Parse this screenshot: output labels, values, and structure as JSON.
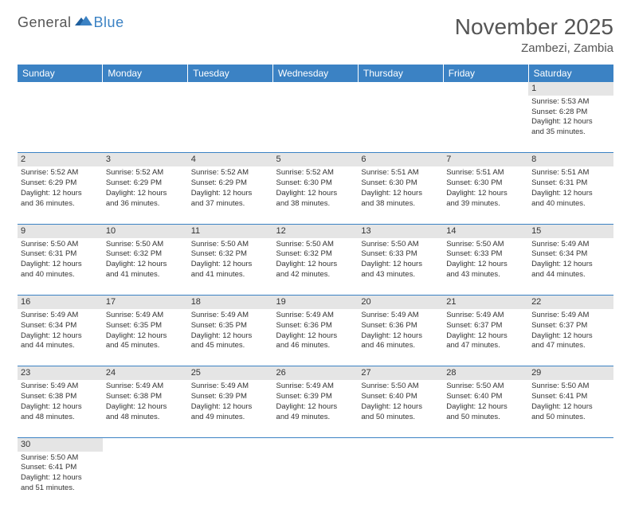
{
  "logo": {
    "part1": "General",
    "part2": "Blue"
  },
  "title": "November 2025",
  "location": "Zambezi, Zambia",
  "colors": {
    "header_bg": "#3b82c4",
    "header_text": "#ffffff",
    "daynum_bg": "#e5e5e5",
    "cell_border": "#3b82c4",
    "body_text": "#333333",
    "title_text": "#555555"
  },
  "day_headers": [
    "Sunday",
    "Monday",
    "Tuesday",
    "Wednesday",
    "Thursday",
    "Friday",
    "Saturday"
  ],
  "weeks": [
    {
      "nums": [
        "",
        "",
        "",
        "",
        "",
        "",
        "1"
      ],
      "cells": [
        null,
        null,
        null,
        null,
        null,
        null,
        {
          "sunrise": "5:53 AM",
          "sunset": "6:28 PM",
          "dl1": "12 hours",
          "dl2": "and 35 minutes."
        }
      ]
    },
    {
      "nums": [
        "2",
        "3",
        "4",
        "5",
        "6",
        "7",
        "8"
      ],
      "cells": [
        {
          "sunrise": "5:52 AM",
          "sunset": "6:29 PM",
          "dl1": "12 hours",
          "dl2": "and 36 minutes."
        },
        {
          "sunrise": "5:52 AM",
          "sunset": "6:29 PM",
          "dl1": "12 hours",
          "dl2": "and 36 minutes."
        },
        {
          "sunrise": "5:52 AM",
          "sunset": "6:29 PM",
          "dl1": "12 hours",
          "dl2": "and 37 minutes."
        },
        {
          "sunrise": "5:52 AM",
          "sunset": "6:30 PM",
          "dl1": "12 hours",
          "dl2": "and 38 minutes."
        },
        {
          "sunrise": "5:51 AM",
          "sunset": "6:30 PM",
          "dl1": "12 hours",
          "dl2": "and 38 minutes."
        },
        {
          "sunrise": "5:51 AM",
          "sunset": "6:30 PM",
          "dl1": "12 hours",
          "dl2": "and 39 minutes."
        },
        {
          "sunrise": "5:51 AM",
          "sunset": "6:31 PM",
          "dl1": "12 hours",
          "dl2": "and 40 minutes."
        }
      ]
    },
    {
      "nums": [
        "9",
        "10",
        "11",
        "12",
        "13",
        "14",
        "15"
      ],
      "cells": [
        {
          "sunrise": "5:50 AM",
          "sunset": "6:31 PM",
          "dl1": "12 hours",
          "dl2": "and 40 minutes."
        },
        {
          "sunrise": "5:50 AM",
          "sunset": "6:32 PM",
          "dl1": "12 hours",
          "dl2": "and 41 minutes."
        },
        {
          "sunrise": "5:50 AM",
          "sunset": "6:32 PM",
          "dl1": "12 hours",
          "dl2": "and 41 minutes."
        },
        {
          "sunrise": "5:50 AM",
          "sunset": "6:32 PM",
          "dl1": "12 hours",
          "dl2": "and 42 minutes."
        },
        {
          "sunrise": "5:50 AM",
          "sunset": "6:33 PM",
          "dl1": "12 hours",
          "dl2": "and 43 minutes."
        },
        {
          "sunrise": "5:50 AM",
          "sunset": "6:33 PM",
          "dl1": "12 hours",
          "dl2": "and 43 minutes."
        },
        {
          "sunrise": "5:49 AM",
          "sunset": "6:34 PM",
          "dl1": "12 hours",
          "dl2": "and 44 minutes."
        }
      ]
    },
    {
      "nums": [
        "16",
        "17",
        "18",
        "19",
        "20",
        "21",
        "22"
      ],
      "cells": [
        {
          "sunrise": "5:49 AM",
          "sunset": "6:34 PM",
          "dl1": "12 hours",
          "dl2": "and 44 minutes."
        },
        {
          "sunrise": "5:49 AM",
          "sunset": "6:35 PM",
          "dl1": "12 hours",
          "dl2": "and 45 minutes."
        },
        {
          "sunrise": "5:49 AM",
          "sunset": "6:35 PM",
          "dl1": "12 hours",
          "dl2": "and 45 minutes."
        },
        {
          "sunrise": "5:49 AM",
          "sunset": "6:36 PM",
          "dl1": "12 hours",
          "dl2": "and 46 minutes."
        },
        {
          "sunrise": "5:49 AM",
          "sunset": "6:36 PM",
          "dl1": "12 hours",
          "dl2": "and 46 minutes."
        },
        {
          "sunrise": "5:49 AM",
          "sunset": "6:37 PM",
          "dl1": "12 hours",
          "dl2": "and 47 minutes."
        },
        {
          "sunrise": "5:49 AM",
          "sunset": "6:37 PM",
          "dl1": "12 hours",
          "dl2": "and 47 minutes."
        }
      ]
    },
    {
      "nums": [
        "23",
        "24",
        "25",
        "26",
        "27",
        "28",
        "29"
      ],
      "cells": [
        {
          "sunrise": "5:49 AM",
          "sunset": "6:38 PM",
          "dl1": "12 hours",
          "dl2": "and 48 minutes."
        },
        {
          "sunrise": "5:49 AM",
          "sunset": "6:38 PM",
          "dl1": "12 hours",
          "dl2": "and 48 minutes."
        },
        {
          "sunrise": "5:49 AM",
          "sunset": "6:39 PM",
          "dl1": "12 hours",
          "dl2": "and 49 minutes."
        },
        {
          "sunrise": "5:49 AM",
          "sunset": "6:39 PM",
          "dl1": "12 hours",
          "dl2": "and 49 minutes."
        },
        {
          "sunrise": "5:50 AM",
          "sunset": "6:40 PM",
          "dl1": "12 hours",
          "dl2": "and 50 minutes."
        },
        {
          "sunrise": "5:50 AM",
          "sunset": "6:40 PM",
          "dl1": "12 hours",
          "dl2": "and 50 minutes."
        },
        {
          "sunrise": "5:50 AM",
          "sunset": "6:41 PM",
          "dl1": "12 hours",
          "dl2": "and 50 minutes."
        }
      ]
    },
    {
      "nums": [
        "30",
        "",
        "",
        "",
        "",
        "",
        ""
      ],
      "cells": [
        {
          "sunrise": "5:50 AM",
          "sunset": "6:41 PM",
          "dl1": "12 hours",
          "dl2": "and 51 minutes."
        },
        null,
        null,
        null,
        null,
        null,
        null
      ]
    }
  ],
  "labels": {
    "sunrise_prefix": "Sunrise: ",
    "sunset_prefix": "Sunset: ",
    "daylight_prefix": "Daylight: "
  }
}
